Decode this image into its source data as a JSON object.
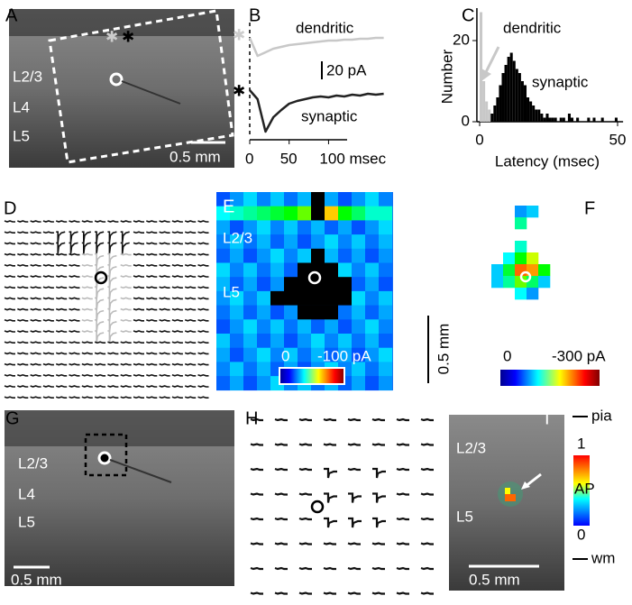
{
  "panels": {
    "A": {
      "label": "A",
      "layers": [
        "L2/3",
        "L4",
        "L5"
      ],
      "scale": "0.5 mm"
    },
    "B": {
      "label": "B",
      "type": "line",
      "x": [
        0,
        10,
        20,
        30,
        40,
        50,
        60,
        70,
        80,
        90,
        100,
        110,
        120,
        130,
        140,
        150,
        160,
        170
      ],
      "series": [
        {
          "name": "dendritic",
          "color": "#c8c8c8",
          "values": [
            0,
            -20,
            -16,
            -12,
            -10,
            -8,
            -7,
            -6,
            -5,
            -4,
            -3,
            -3,
            -2,
            -2,
            -1,
            -1,
            0,
            0
          ]
        },
        {
          "name": "synaptic",
          "color": "#222222",
          "values": [
            0,
            -10,
            -46,
            -30,
            -22,
            -15,
            -12,
            -10,
            -8,
            -7,
            -8,
            -6,
            -7,
            -5,
            -6,
            -4,
            -5,
            -4
          ]
        }
      ],
      "xlim": [
        0,
        175
      ],
      "xticks": [
        0,
        50,
        {
          "value": 100,
          "label": "100 msec"
        }
      ],
      "scale": "20 pA"
    },
    "C": {
      "label": "C",
      "type": "histogram",
      "xlabel": "Latency (msec)",
      "ylabel": "Number",
      "bins": [
        0,
        1,
        2,
        3,
        4,
        5,
        6,
        7,
        8,
        9,
        10,
        11,
        12,
        13,
        14,
        15,
        16,
        17,
        18,
        19,
        20,
        21,
        22,
        23,
        24,
        25,
        26,
        27,
        28,
        29,
        30,
        31,
        32,
        33,
        34,
        35,
        36,
        37,
        38,
        39,
        40,
        41,
        42,
        43,
        44,
        45,
        46,
        47,
        48,
        49,
        50,
        51,
        52
      ],
      "series": [
        {
          "name": "dendritic",
          "color": "#c8c8c8",
          "values": [
            27,
            10,
            5,
            3,
            0,
            0,
            0,
            0,
            0,
            0,
            0,
            0,
            0,
            0,
            0,
            0,
            0,
            0,
            0,
            0,
            0,
            0,
            0,
            0,
            0,
            0,
            0,
            0,
            0,
            0,
            0,
            0,
            0,
            0,
            0,
            0,
            0,
            0,
            0,
            0,
            0,
            0,
            0,
            0,
            0,
            0,
            0,
            0,
            0,
            0,
            0,
            0
          ]
        },
        {
          "name": "synaptic",
          "color": "#000000",
          "values": [
            0,
            0,
            0,
            0,
            2,
            4,
            6,
            9,
            12,
            14,
            16,
            17,
            15,
            13,
            12,
            10,
            9,
            6,
            5,
            4,
            3,
            3,
            2,
            1,
            2,
            1,
            1,
            1,
            0,
            1,
            1,
            0,
            2,
            1,
            0,
            1,
            0,
            0,
            0,
            1,
            0,
            1,
            0,
            0,
            1,
            0,
            0,
            0,
            0,
            1,
            0,
            0
          ]
        }
      ],
      "xlim": [
        -1,
        52
      ],
      "xticks": [
        0,
        50
      ],
      "ylim": [
        0,
        28
      ],
      "yticks": [
        0,
        20
      ]
    },
    "D": {
      "label": "D"
    },
    "E": {
      "label": "E",
      "layers": [
        "L2/3",
        "L5"
      ],
      "colorbar": [
        "0",
        "-100 pA"
      ]
    },
    "F": {
      "label": "F",
      "colorbar": [
        "0",
        "-300 pA"
      ],
      "scale": "0.5 mm"
    },
    "G": {
      "label": "G",
      "layers": [
        "L2/3",
        "L4",
        "L5"
      ],
      "scale": "0.5 mm"
    },
    "H": {
      "label": "H"
    },
    "I": {
      "label": "I",
      "layers": [
        "L2/3",
        "L5"
      ],
      "colorbar": [
        "1",
        "AP",
        "0"
      ],
      "markers": [
        "pia",
        "wm"
      ],
      "scale": "0.5 mm"
    }
  }
}
